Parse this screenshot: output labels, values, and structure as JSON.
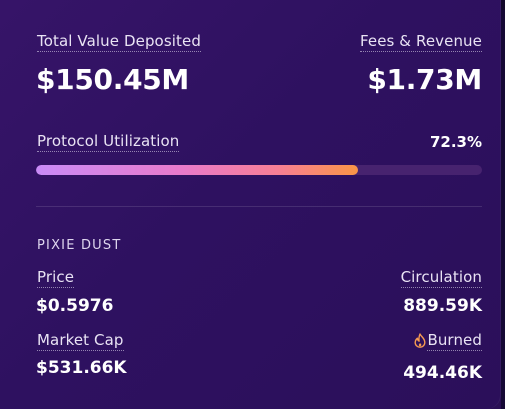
{
  "stats": {
    "tvd_label": "Total Value Deposited",
    "tvd_value": "$150.45M",
    "fees_label": "Fees & Revenue",
    "fees_value": "$1.73M"
  },
  "utilization": {
    "label": "Protocol Utilization",
    "value_text": "72.3%",
    "percent": 72.3
  },
  "token": {
    "section_title": "PIXIE DUST",
    "price_label": "Price",
    "price_value": "$0.5976",
    "circulation_label": "Circulation",
    "circulation_value": "889.59K",
    "market_cap_label": "Market Cap",
    "market_cap_value": "$531.66K",
    "burned_label": "Burned",
    "burned_value": "494.46K",
    "burned_icon": "flame-icon"
  },
  "colors": {
    "card_bg": "#2e1160",
    "bar_track": "#47236f",
    "bar_start": "#c98bf7",
    "bar_end": "#f99546",
    "flame": "#f59a52"
  }
}
